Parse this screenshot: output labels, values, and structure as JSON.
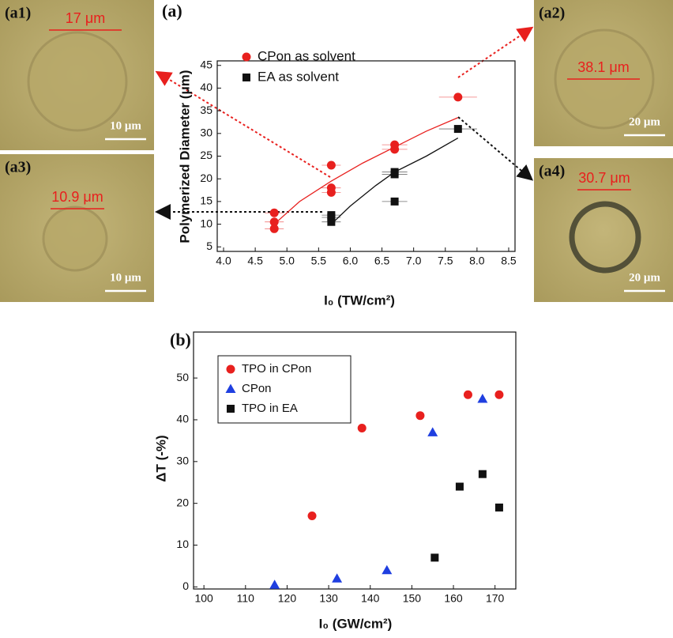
{
  "chart_data": [
    {
      "type": "scatter",
      "title": "(a)",
      "x_label": "I₀ (TW/cm²)",
      "y_label": "Polymerized Diameter (μm)",
      "xlim": [
        3.9,
        8.6
      ],
      "ylim": [
        4,
        46
      ],
      "xticks": [
        {
          "value": 4,
          "label": "4.0"
        },
        {
          "value": 4.5,
          "label": "4.5"
        },
        {
          "value": 5,
          "label": "5.0"
        },
        {
          "value": 5.5,
          "label": "5.5"
        },
        {
          "value": 6,
          "label": "6.0"
        },
        {
          "value": 6.5,
          "label": "6.5"
        },
        {
          "value": 7,
          "label": "7.0"
        },
        {
          "value": 7.5,
          "label": "7.5"
        },
        {
          "value": 8,
          "label": "8.0"
        },
        {
          "value": 8.5,
          "label": "8.5"
        }
      ],
      "yticks": [
        5,
        10,
        15,
        20,
        25,
        30,
        35,
        40,
        45
      ],
      "legend": "upper left",
      "series": [
        {
          "name": "CPon as solvent",
          "color": "#e8201e",
          "marker": "circle",
          "x": [
            4.8,
            4.8,
            4.8,
            5.7,
            5.7,
            5.7,
            6.7,
            6.7,
            7.7
          ],
          "values": [
            9,
            10.5,
            12.5,
            17,
            18,
            23,
            26.5,
            27.5,
            38
          ],
          "x_errors": [
            0.15,
            0.15,
            0.15,
            0.15,
            0.15,
            0.15,
            0.2,
            0.2,
            0.3
          ]
        },
        {
          "name": "EA as solvent",
          "color": "#111111",
          "marker": "square",
          "x": [
            5.7,
            5.7,
            5.7,
            6.7,
            6.7,
            6.7,
            7.7
          ],
          "values": [
            10.5,
            11.5,
            12,
            15,
            21,
            21.5,
            31
          ],
          "x_errors": [
            0.15,
            0.15,
            0.15,
            0.2,
            0.2,
            0.2,
            0.3
          ]
        }
      ],
      "fits": [
        {
          "color": "#e8201e",
          "x": [
            4.8,
            5.2,
            5.7,
            6.2,
            6.7,
            7.2,
            7.7
          ],
          "values": [
            10,
            15,
            19.5,
            23.5,
            27,
            30.5,
            33.5
          ]
        },
        {
          "color": "#111111",
          "x": [
            5.7,
            6.0,
            6.4,
            6.7,
            7.2,
            7.7
          ],
          "values": [
            10,
            14,
            18.5,
            21.5,
            25,
            29
          ]
        }
      ],
      "insets": [
        {
          "label": "(a1)",
          "measure": "17 μm",
          "scale": "10 μm"
        },
        {
          "label": "(a2)",
          "measure": "38.1 μm",
          "scale": "20 μm"
        },
        {
          "label": "(a3)",
          "measure": "10.9 μm",
          "scale": "10 μm"
        },
        {
          "label": "(a4)",
          "measure": "30.7 μm",
          "scale": "20 μm"
        }
      ]
    },
    {
      "type": "scatter",
      "title": "(b)",
      "x_label": "I₀ (GW/cm²)",
      "y_label": "ΔT (-%)",
      "xlim": [
        97.5,
        175
      ],
      "ylim": [
        -0.5,
        61
      ],
      "xticks": [
        100,
        110,
        120,
        130,
        140,
        150,
        160,
        170
      ],
      "yticks": [
        0,
        10,
        20,
        30,
        40,
        50
      ],
      "legend": "upper left",
      "series": [
        {
          "name": "TPO in CPon",
          "color": "#e8201e",
          "marker": "circle",
          "x": [
            126,
            138,
            152,
            163.5,
            171
          ],
          "values": [
            17,
            38,
            41,
            46,
            46
          ]
        },
        {
          "name": "CPon",
          "color": "#1f3fe0",
          "marker": "triangle",
          "x": [
            117,
            132,
            144,
            155,
            167
          ],
          "values": [
            0.5,
            2,
            4,
            37,
            45
          ]
        },
        {
          "name": "TPO in EA",
          "color": "#111111",
          "marker": "square",
          "x": [
            155.5,
            161.5,
            167,
            171
          ],
          "values": [
            7,
            24,
            27,
            19
          ]
        }
      ]
    }
  ]
}
